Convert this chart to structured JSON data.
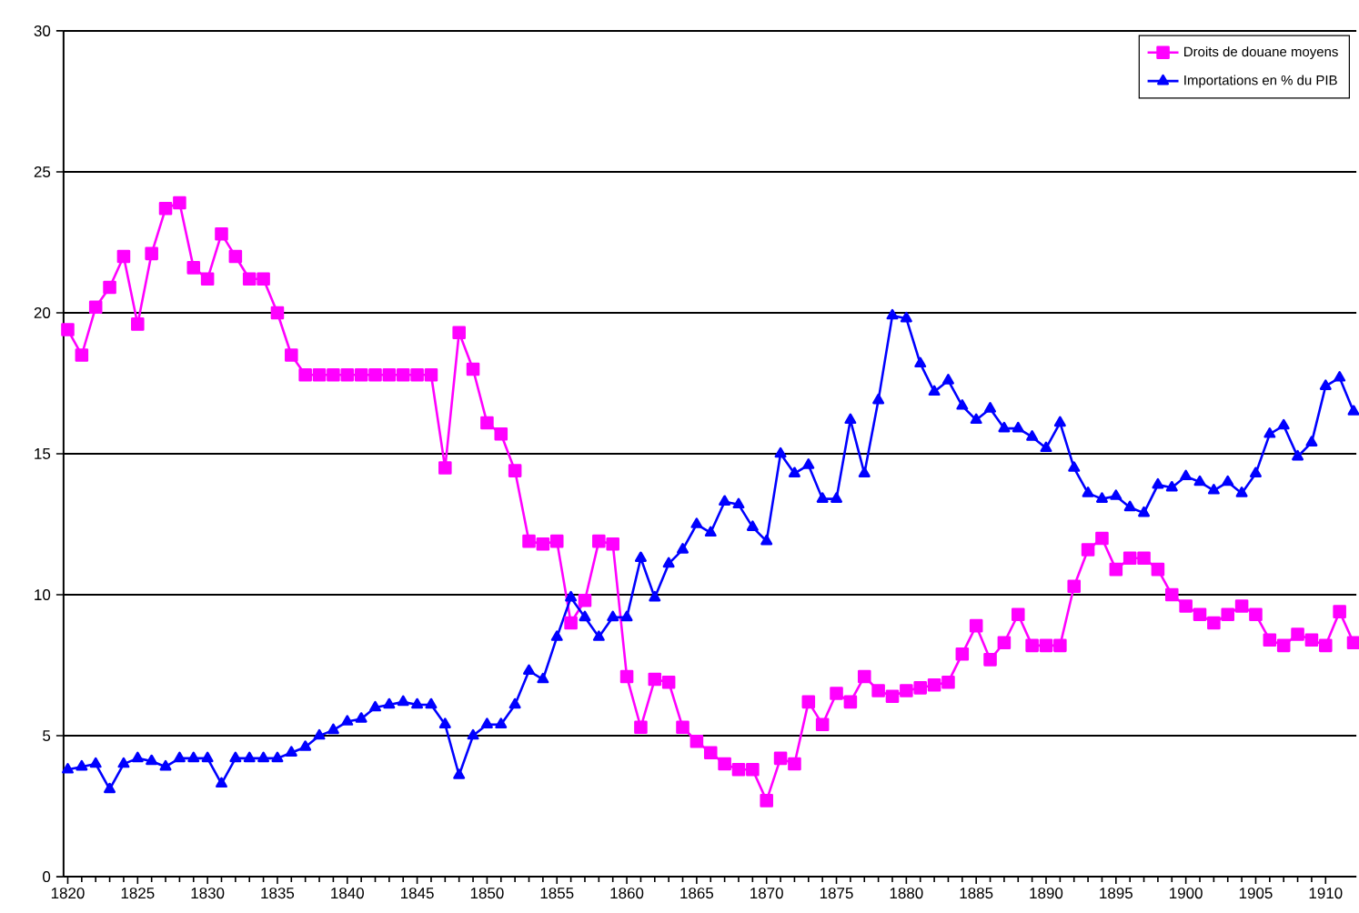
{
  "chart_data": {
    "type": "line",
    "x": [
      1820,
      1821,
      1822,
      1823,
      1824,
      1825,
      1826,
      1827,
      1828,
      1829,
      1830,
      1831,
      1832,
      1833,
      1834,
      1835,
      1836,
      1837,
      1838,
      1839,
      1840,
      1841,
      1842,
      1843,
      1844,
      1845,
      1846,
      1847,
      1848,
      1849,
      1850,
      1851,
      1852,
      1853,
      1854,
      1855,
      1856,
      1857,
      1858,
      1859,
      1860,
      1861,
      1862,
      1863,
      1864,
      1865,
      1866,
      1867,
      1868,
      1869,
      1870,
      1871,
      1872,
      1873,
      1874,
      1875,
      1876,
      1877,
      1878,
      1879,
      1880,
      1881,
      1882,
      1883,
      1884,
      1885,
      1886,
      1887,
      1888,
      1889,
      1890,
      1891,
      1892,
      1893,
      1894,
      1895,
      1896,
      1897,
      1898,
      1899,
      1900,
      1901,
      1902,
      1903,
      1904,
      1905,
      1906,
      1907,
      1908,
      1909,
      1910,
      1911,
      1912
    ],
    "series": [
      {
        "name": "Droits de douane moyens",
        "color": "#ff00ff",
        "marker": "square",
        "values": [
          19.4,
          18.5,
          20.2,
          20.9,
          22.0,
          19.6,
          22.1,
          23.7,
          23.9,
          21.6,
          21.2,
          22.8,
          22.0,
          21.2,
          21.2,
          20.0,
          18.5,
          17.8,
          17.8,
          17.8,
          17.8,
          17.8,
          17.8,
          17.8,
          17.8,
          17.8,
          17.8,
          14.5,
          19.3,
          18.0,
          16.1,
          15.7,
          14.4,
          11.9,
          11.8,
          11.9,
          9.0,
          9.8,
          11.9,
          11.8,
          7.1,
          5.3,
          7.0,
          6.9,
          5.3,
          4.8,
          4.4,
          4.0,
          3.8,
          3.8,
          2.7,
          4.2,
          4.0,
          6.2,
          5.4,
          6.5,
          6.2,
          7.1,
          6.6,
          6.4,
          6.6,
          6.7,
          6.8,
          6.9,
          7.9,
          8.9,
          7.7,
          8.3,
          9.3,
          8.2,
          8.2,
          8.2,
          10.3,
          11.6,
          12.0,
          10.9,
          11.3,
          11.3,
          10.9,
          10.0,
          9.6,
          9.3,
          9.0,
          9.3,
          9.6,
          9.3,
          8.4,
          8.2,
          8.6,
          8.4,
          8.2,
          9.4,
          8.3
        ]
      },
      {
        "name": "Importations en % du PIB",
        "color": "#0000ff",
        "marker": "triangle",
        "values": [
          3.8,
          3.9,
          4.0,
          3.1,
          4.0,
          4.2,
          4.1,
          3.9,
          4.2,
          4.2,
          4.2,
          3.3,
          4.2,
          4.2,
          4.2,
          4.2,
          4.4,
          4.6,
          5.0,
          5.2,
          5.5,
          5.6,
          6.0,
          6.1,
          6.2,
          6.1,
          6.1,
          5.4,
          3.6,
          5.0,
          5.4,
          5.4,
          6.1,
          7.3,
          7.0,
          8.5,
          9.9,
          9.2,
          8.5,
          9.2,
          9.2,
          11.3,
          9.9,
          11.1,
          11.6,
          12.5,
          12.2,
          13.3,
          13.2,
          12.4,
          11.9,
          15.0,
          14.3,
          14.6,
          13.4,
          13.4,
          16.2,
          14.3,
          16.9,
          19.9,
          19.8,
          18.2,
          17.2,
          17.6,
          16.7,
          16.2,
          16.6,
          15.9,
          15.9,
          15.6,
          15.2,
          16.1,
          14.5,
          13.6,
          13.4,
          13.5,
          13.1,
          12.9,
          13.9,
          13.8,
          14.2,
          14.0,
          13.7,
          14.0,
          13.6,
          14.3,
          15.7,
          16.0,
          14.9,
          15.4,
          17.4,
          17.7,
          16.5
        ]
      }
    ],
    "xlim": [
      1819.7,
      1912.2
    ],
    "ylim": [
      0,
      30
    ],
    "xticks": [
      1820,
      1825,
      1830,
      1835,
      1840,
      1845,
      1850,
      1855,
      1860,
      1865,
      1870,
      1875,
      1880,
      1885,
      1890,
      1895,
      1900,
      1905,
      1910
    ],
    "yticks": [
      0,
      5,
      10,
      15,
      20,
      25,
      30
    ],
    "grid": "y",
    "legend": "top right",
    "line_style": "solid"
  }
}
